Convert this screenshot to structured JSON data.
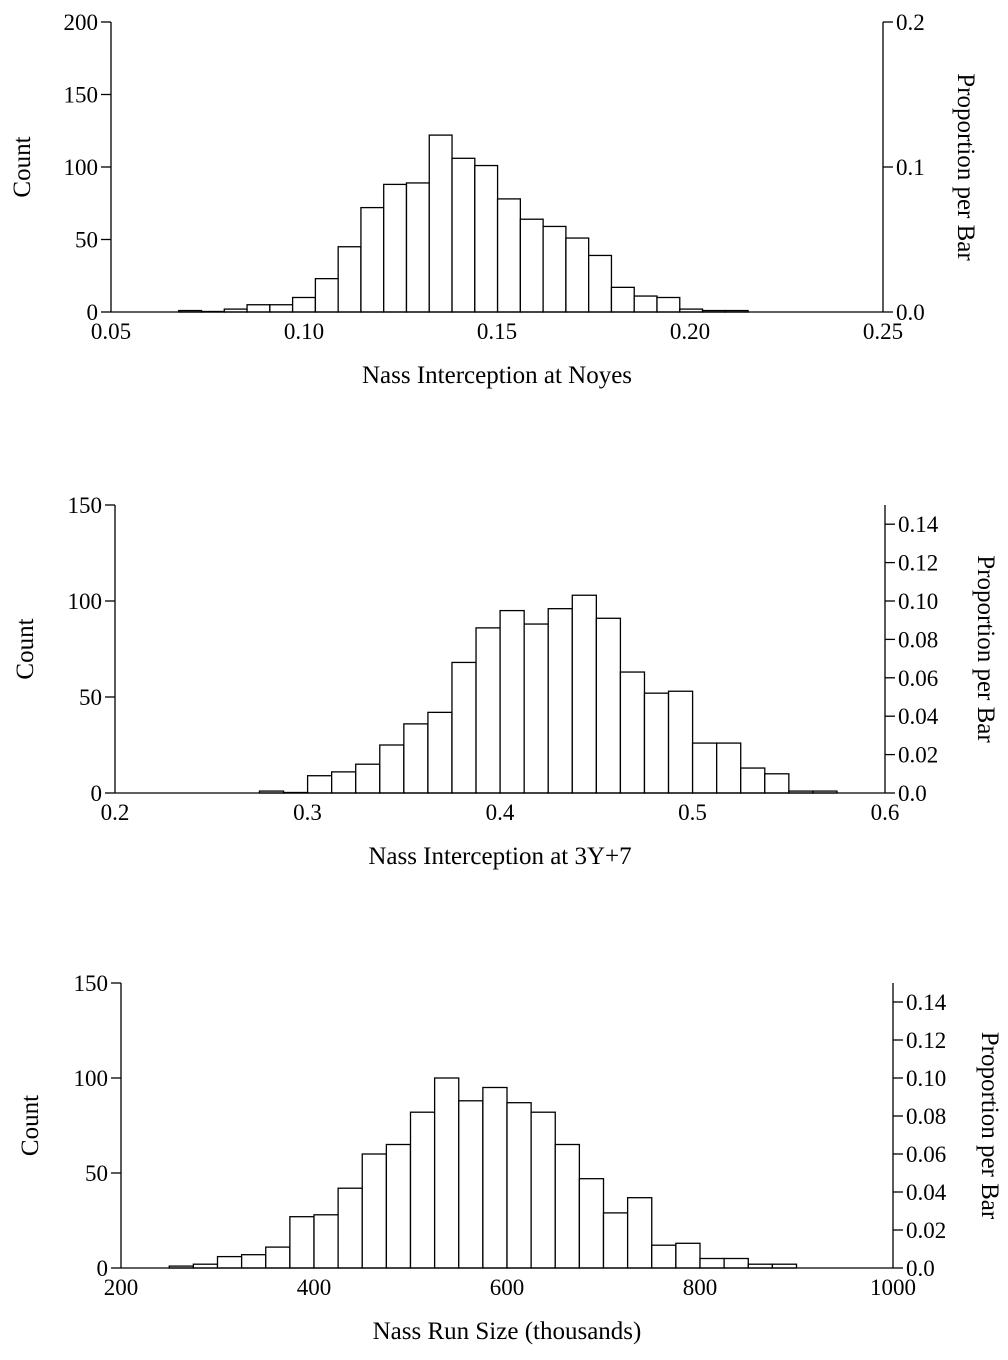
{
  "chart_data": [
    {
      "type": "bar",
      "xlabel": "Nass Interception at Noyes",
      "ylabel": "Count",
      "y2label": "Proportion per Bar",
      "xlim": [
        0.05,
        0.25
      ],
      "ylim": [
        0,
        200
      ],
      "y2lim": [
        0,
        0.2
      ],
      "xticks": [
        "0.05",
        "0.10",
        "0.15",
        "0.20",
        "0.25"
      ],
      "yticks": [
        "0",
        "50",
        "100",
        "150",
        "200"
      ],
      "y2ticks": [
        "0.0",
        "0.1",
        "0.2"
      ],
      "bin_width": 0.0059,
      "x": [
        0.0705,
        0.0764,
        0.0823,
        0.0882,
        0.0941,
        0.1,
        0.1059,
        0.1118,
        0.1177,
        0.1236,
        0.1295,
        0.1354,
        0.1413,
        0.1472,
        0.1531,
        0.159,
        0.1649,
        0.1708,
        0.1767,
        0.1826,
        0.1885,
        0.1944,
        0.2003,
        0.2062,
        0.2121
      ],
      "values": [
        1,
        0,
        2,
        5,
        5,
        10,
        23,
        45,
        72,
        88,
        89,
        122,
        106,
        101,
        78,
        64,
        59,
        51,
        39,
        17,
        11,
        10,
        2,
        1,
        1
      ]
    },
    {
      "type": "bar",
      "xlabel": "Nass Interception at 3Y+7",
      "ylabel": "Count",
      "y2label": "Proportion per Bar",
      "xlim": [
        0.2,
        0.6
      ],
      "ylim": [
        0,
        150
      ],
      "y2lim": [
        0,
        0.15
      ],
      "xticks": [
        "0.2",
        "0.3",
        "0.4",
        "0.5",
        "0.6"
      ],
      "yticks": [
        "0",
        "50",
        "100",
        "150"
      ],
      "y2ticks": [
        "0.0",
        "0.02",
        "0.04",
        "0.06",
        "0.08",
        "0.10",
        "0.12",
        "0.14"
      ],
      "bin_width": 0.0125,
      "x": [
        0.2813,
        0.2938,
        0.3063,
        0.3188,
        0.3313,
        0.3438,
        0.3563,
        0.3688,
        0.3813,
        0.3938,
        0.4063,
        0.4188,
        0.4313,
        0.4438,
        0.4563,
        0.4688,
        0.4813,
        0.4938,
        0.5063,
        0.5188,
        0.5313,
        0.5438,
        0.5563,
        0.5688
      ],
      "values": [
        1,
        0,
        9,
        11,
        15,
        25,
        36,
        42,
        68,
        86,
        95,
        88,
        96,
        103,
        91,
        63,
        52,
        53,
        26,
        26,
        13,
        10,
        1,
        1
      ]
    },
    {
      "type": "bar",
      "xlabel": "Nass Run Size (thousands)",
      "ylabel": "Count",
      "y2label": "Proportion per Bar",
      "xlim": [
        200,
        1000
      ],
      "ylim": [
        0,
        150
      ],
      "y2lim": [
        0,
        0.15
      ],
      "xticks": [
        "200",
        "400",
        "600",
        "800",
        "1000"
      ],
      "yticks": [
        "0",
        "50",
        "100",
        "150"
      ],
      "y2ticks": [
        "0.0",
        "0.02",
        "0.04",
        "0.06",
        "0.08",
        "0.10",
        "0.12",
        "0.14"
      ],
      "bin_width": 25,
      "x": [
        262.5,
        287.5,
        312.5,
        337.5,
        362.5,
        387.5,
        412.5,
        437.5,
        462.5,
        487.5,
        512.5,
        537.5,
        562.5,
        587.5,
        612.5,
        637.5,
        662.5,
        687.5,
        712.5,
        737.5,
        762.5,
        787.5,
        812.5,
        837.5,
        862.5,
        887.5
      ],
      "values": [
        1,
        2,
        6,
        7,
        11,
        27,
        28,
        42,
        60,
        65,
        82,
        100,
        88,
        95,
        87,
        82,
        65,
        47,
        29,
        37,
        12,
        13,
        5,
        5,
        2,
        2
      ]
    }
  ]
}
